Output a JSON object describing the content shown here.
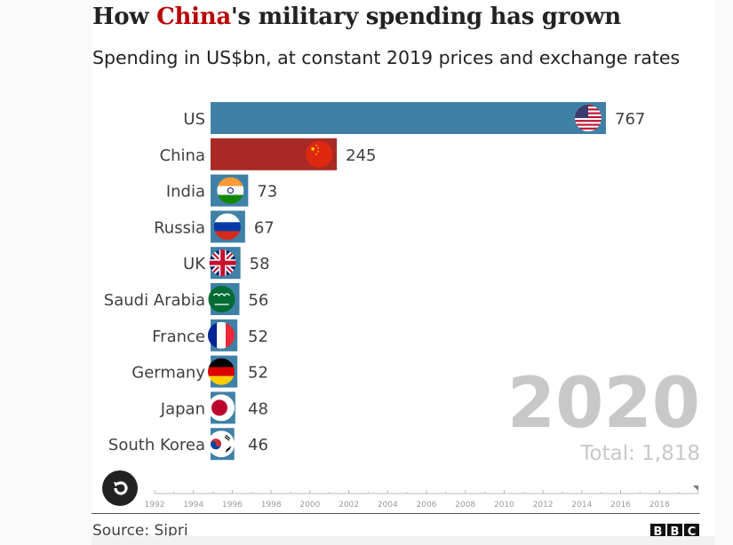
{
  "header": {
    "title_prefix": "How ",
    "title_highlight": "China",
    "title_suffix": "'s military spending has grown",
    "subtitle": "Spending in US$bn, at constant 2019 prices and exchange rates"
  },
  "chart_data": {
    "type": "bar",
    "orientation": "horizontal",
    "title": "How China's military spending has grown",
    "subtitle": "Spending in US$bn, at constant 2019 prices and exchange rates",
    "categories": [
      "US",
      "China",
      "India",
      "Russia",
      "UK",
      "Saudi Arabia",
      "France",
      "Germany",
      "Japan",
      "South Korea"
    ],
    "values": [
      767,
      245,
      73,
      67,
      58,
      56,
      52,
      52,
      48,
      46
    ],
    "flags": [
      "us-flag",
      "china-flag",
      "india-flag",
      "russia-flag",
      "uk-flag",
      "saudi-arabia-flag",
      "france-flag",
      "germany-flag",
      "japan-flag",
      "south-korea-flag"
    ],
    "bar_colors": {
      "default": "#3f80a7",
      "highlight": "#a82a25"
    },
    "highlight_category": "China",
    "year": "2020",
    "total_label": "Total: 1,818",
    "xlabel": "",
    "ylabel": "",
    "xlim": [
      0,
      767
    ],
    "grid": false,
    "timeline": {
      "start": 1992,
      "end": 2020,
      "current": 2020,
      "tick_labels": [
        "1992",
        "1994",
        "1996",
        "1998",
        "2000",
        "2002",
        "2004",
        "2006",
        "2008",
        "2010",
        "2012",
        "2014",
        "2016",
        "2018"
      ]
    }
  },
  "controls": {
    "replay_icon": "replay-icon"
  },
  "footer": {
    "source": "Source: Sipri",
    "logo_letters": [
      "B",
      "B",
      "C"
    ]
  }
}
